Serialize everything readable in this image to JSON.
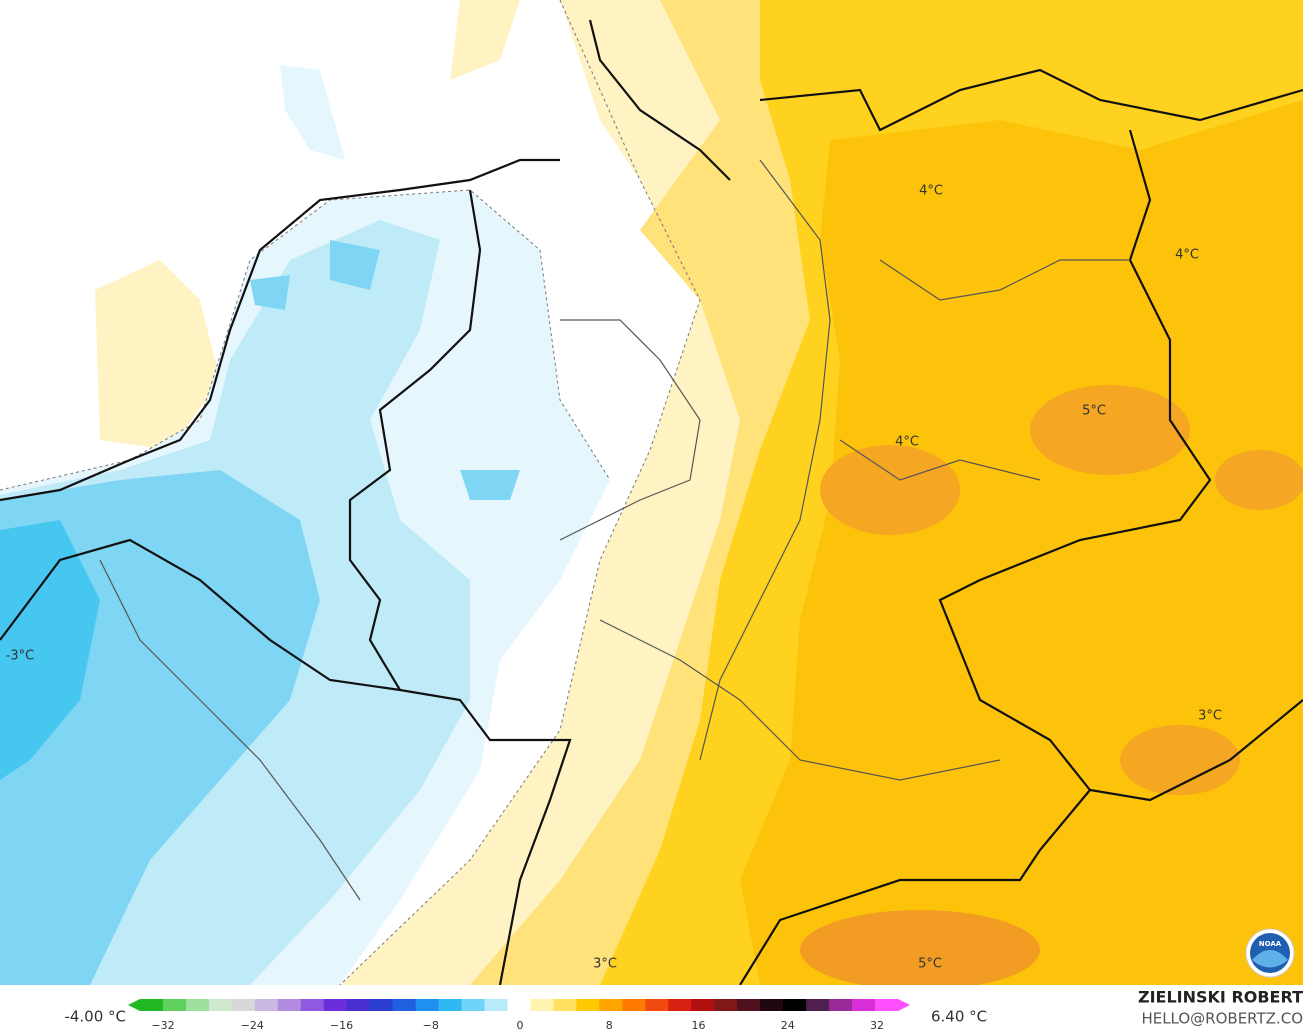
{
  "map": {
    "contour_labels": [
      "4°C",
      "4°C",
      "5°C",
      "4°C",
      "-3°C",
      "3°C",
      "3°C",
      "5°C"
    ]
  },
  "colorbar": {
    "min_label": "-4.00 °C",
    "max_label": "6.40 °C",
    "ticks": [
      "−32",
      "−24",
      "−16",
      "−8",
      "0",
      "8",
      "16",
      "24",
      "32"
    ]
  },
  "credit": {
    "name": "ZIELINSKI ROBERT",
    "contact": "HELLO@ROBERTZ.CO"
  },
  "logo": "NOAA"
}
